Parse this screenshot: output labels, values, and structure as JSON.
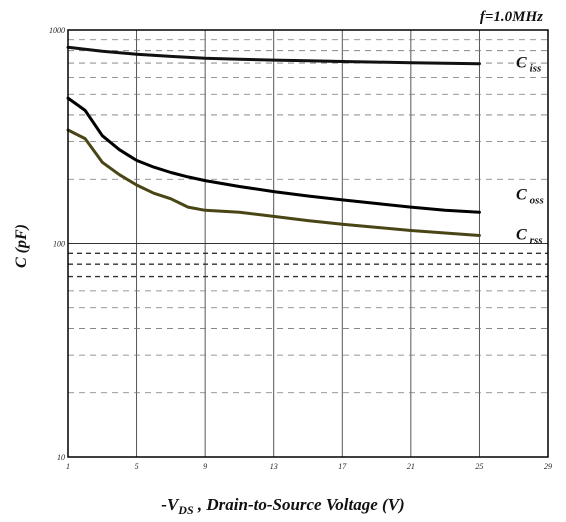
{
  "chart_data": {
    "type": "line",
    "annotation": "f=1.0MHz",
    "xlabel": {
      "prefix": "-V",
      "subscript": "DS",
      "suffix": " , Drain-to-Source Voltage (V)"
    },
    "ylabel": "C (pF)",
    "x_scale": "linear",
    "y_scale": "log",
    "xlim": [
      1,
      29
    ],
    "ylim": [
      10,
      1000
    ],
    "x_ticks": [
      "1",
      "5",
      "9",
      "13",
      "17",
      "21",
      "25",
      "29"
    ],
    "y_ticks": [
      "10",
      "100",
      "1000"
    ],
    "grid": true,
    "series": [
      {
        "name": "C iss",
        "label_main": "C",
        "label_sub": "iss",
        "color": "#111111",
        "x": [
          1,
          3,
          5,
          7,
          9,
          11,
          13,
          15,
          17,
          19,
          21,
          23,
          25
        ],
        "y": [
          830,
          795,
          770,
          752,
          738,
          730,
          723,
          718,
          712,
          707,
          703,
          699,
          695
        ]
      },
      {
        "name": "C oss",
        "label_main": "C",
        "label_sub": "oss",
        "color": "#000000",
        "x": [
          1,
          2,
          3,
          4,
          5,
          6,
          7,
          8,
          9,
          11,
          13,
          15,
          17,
          19,
          21,
          23,
          25
        ],
        "y": [
          480,
          420,
          320,
          275,
          245,
          228,
          215,
          205,
          197,
          185,
          175,
          167,
          160,
          154,
          148,
          143,
          140
        ]
      },
      {
        "name": "C rss",
        "label_main": "C",
        "label_sub": "rss",
        "color": "#4a4515",
        "x": [
          1,
          2,
          3,
          4,
          5,
          6,
          7,
          8,
          9,
          11,
          13,
          15,
          17,
          19,
          21,
          23,
          25
        ],
        "y": [
          340,
          310,
          240,
          210,
          188,
          172,
          162,
          148,
          143,
          140,
          134,
          128,
          123,
          119,
          115,
          112,
          109
        ]
      }
    ]
  }
}
